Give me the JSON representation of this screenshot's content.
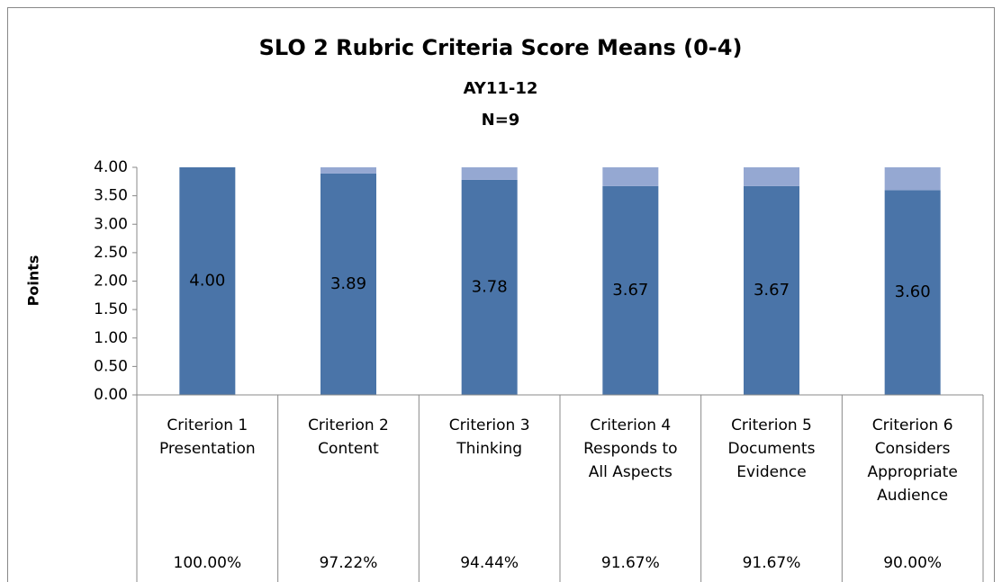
{
  "chart_data": {
    "type": "stacked_bar",
    "title": "SLO 2 Rubric Criteria Score Means (0-4)",
    "subtitle": "AY11-12",
    "subtitle2": "N=9",
    "ylabel": "Points",
    "categories": [
      "Criterion 1\nPresentation",
      "Criterion 2\nContent",
      "Criterion 3\nThinking",
      "Criterion 4\nResponds to\nAll Aspects",
      "Criterion 5\nDocuments\nEvidence",
      "Criterion 6\nConsiders\nAppropriate\nAudience"
    ],
    "series": [
      {
        "color": "#4a74a8",
        "values": [
          4.0,
          3.89,
          3.78,
          3.67,
          3.67,
          3.6
        ],
        "value_labels": [
          "4.00",
          "3.89",
          "3.78",
          "3.67",
          "3.67",
          "3.60"
        ]
      },
      {
        "color": "#95a8d2",
        "values": [
          0,
          0.11,
          0.22,
          0.33,
          0.33,
          0.4
        ]
      }
    ],
    "table_row": [
      "100.00%",
      "97.22%",
      "94.44%",
      "91.67%",
      "91.67%",
      "90.00%"
    ],
    "ylim": [
      0,
      4
    ],
    "yticks": [
      {
        "value": 0,
        "label": "0.00"
      },
      {
        "value": 0.5,
        "label": "0.50"
      },
      {
        "value": 1,
        "label": "1.00"
      },
      {
        "value": 1.5,
        "label": "1.50"
      },
      {
        "value": 2,
        "label": "2.00"
      },
      {
        "value": 2.5,
        "label": "2.50"
      },
      {
        "value": 3,
        "label": "3.00"
      },
      {
        "value": 3.5,
        "label": "3.50"
      },
      {
        "value": 4,
        "label": "4.00"
      }
    ]
  }
}
